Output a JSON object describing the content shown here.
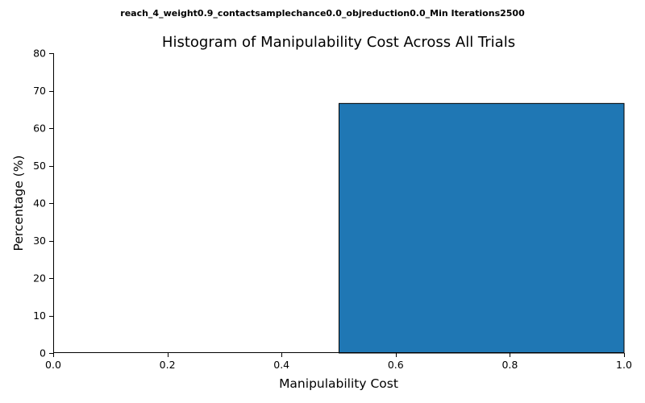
{
  "chart_data": {
    "type": "bar",
    "suptitle": "reach_4_weight0.9_contactsamplechance0.0_objreduction0.0_Min Iterations2500",
    "title": "Histogram of Manipulability Cost Across All Trials",
    "xlabel": "Manipulability Cost",
    "ylabel": "Percentage (%)",
    "xlim": [
      0.0,
      1.0
    ],
    "ylim": [
      0,
      80
    ],
    "x_ticks": [
      "0.0",
      "0.2",
      "0.4",
      "0.6",
      "0.8",
      "1.0"
    ],
    "y_ticks": [
      "0",
      "10",
      "20",
      "30",
      "40",
      "50",
      "60",
      "70",
      "80"
    ],
    "bins": [
      {
        "start": 0.0,
        "end": 0.5,
        "value": 0
      },
      {
        "start": 0.5,
        "end": 1.0,
        "value": 66.7
      }
    ],
    "bar_color": "#1f77b4",
    "edge_color": "#000000",
    "grid": false
  }
}
